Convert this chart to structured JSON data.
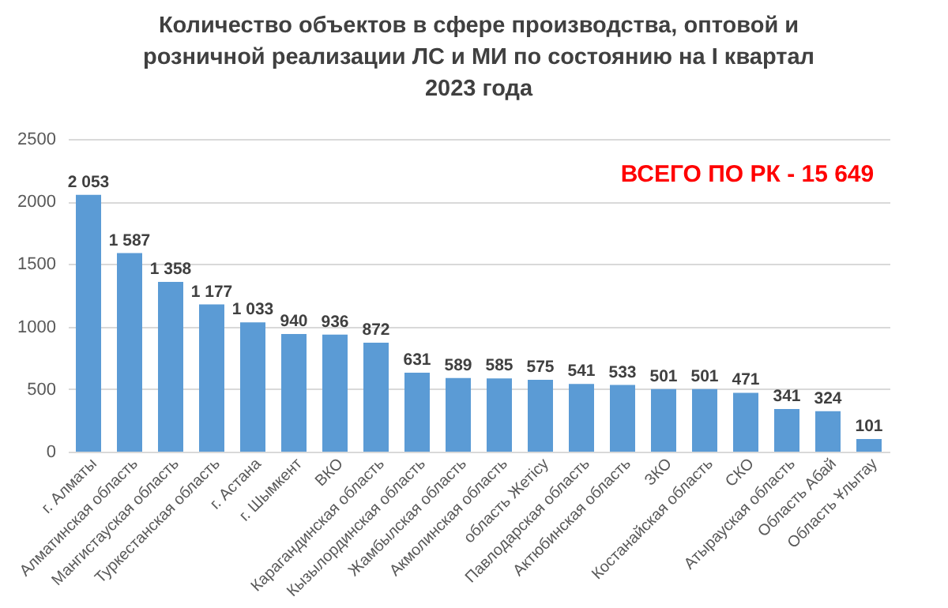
{
  "chart_data": {
    "type": "bar",
    "title": [
      "Количество объектов в сфере производства, оптовой и",
      "розничной реализации ЛС и МИ по состоянию на I квартал",
      "2023 года"
    ],
    "categories": [
      "г. Алматы",
      "Алматинская область",
      "Мангистауская область",
      "Туркестанская область",
      "г. Астана",
      "г. Шымкент",
      "ВКО",
      "Карагандинская область",
      "Кызылординская область",
      "Жамбылская область",
      "Акмолинская область",
      "область Жетісу",
      "Павлодарская область",
      "Актюбинская область",
      "ЗКО",
      "Костанайская область",
      "СКО",
      "Атырауская область",
      "Область Абай",
      "Область Ұлытау"
    ],
    "values": [
      2053,
      1587,
      1358,
      1177,
      1033,
      940,
      936,
      872,
      631,
      589,
      585,
      575,
      541,
      533,
      501,
      501,
      471,
      341,
      324,
      101
    ],
    "value_labels": [
      "2 053",
      "1 587",
      "1 358",
      "1 177",
      "1 033",
      "940",
      "936",
      "872",
      "631",
      "589",
      "585",
      "575",
      "541",
      "533",
      "501",
      "501",
      "471",
      "341",
      "324",
      "101"
    ],
    "color": "#5b9bd5",
    "ylim": [
      0,
      2500
    ],
    "yticks": [
      0,
      500,
      1000,
      1500,
      2000,
      2500
    ],
    "grid": "y",
    "annotations": [
      "ВСЕГО ПО РК - 15 649"
    ]
  }
}
